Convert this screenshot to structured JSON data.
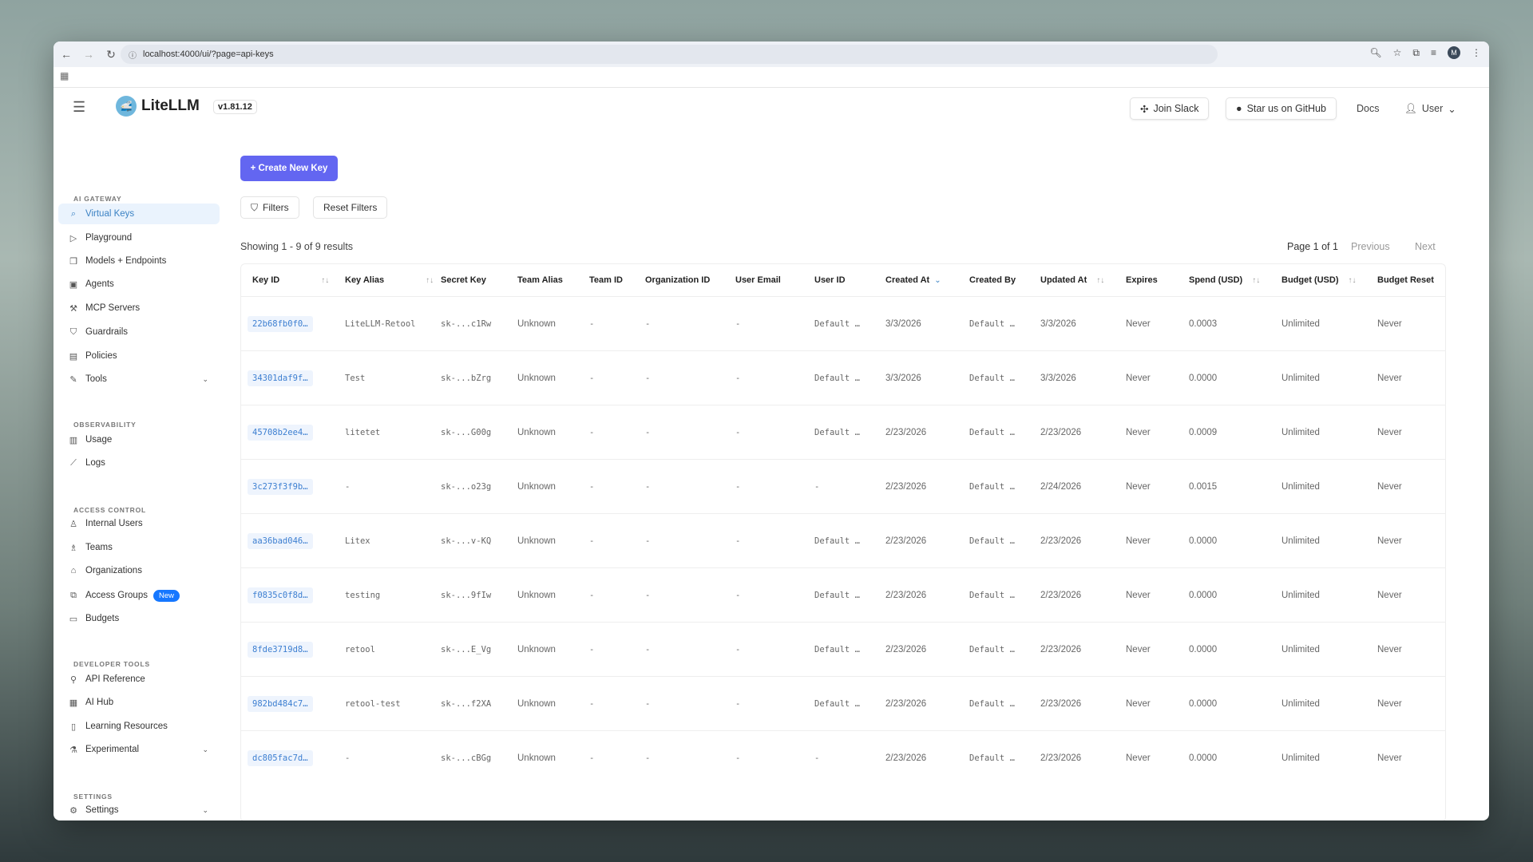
{
  "browser": {
    "url": "localhost:4000/ui/?page=api-keys",
    "avatar": "M"
  },
  "header": {
    "logo": "LiteLLM",
    "version": "v1.81.12",
    "join_slack": "Join Slack",
    "github": "Star us on GitHub",
    "docs": "Docs",
    "user": "User"
  },
  "sidebar": {
    "sections": [
      "AI GATEWAY",
      "OBSERVABILITY",
      "ACCESS CONTROL",
      "DEVELOPER TOOLS",
      "SETTINGS"
    ],
    "items": [
      {
        "label": "Virtual Keys",
        "icon": "search-icon"
      },
      {
        "label": "Playground",
        "icon": "play-icon"
      },
      {
        "label": "Models + Endpoints",
        "icon": "blocks-icon"
      },
      {
        "label": "Agents",
        "icon": "robot-icon"
      },
      {
        "label": "MCP Servers",
        "icon": "tool-icon"
      },
      {
        "label": "Guardrails",
        "icon": "shield-icon"
      },
      {
        "label": "Policies",
        "icon": "document-icon"
      },
      {
        "label": "Tools",
        "icon": "wrench-icon"
      },
      {
        "label": "Usage",
        "icon": "bar-chart-icon"
      },
      {
        "label": "Logs",
        "icon": "line-chart-icon"
      },
      {
        "label": "Internal Users",
        "icon": "user-icon"
      },
      {
        "label": "Teams",
        "icon": "team-icon"
      },
      {
        "label": "Organizations",
        "icon": "bank-icon"
      },
      {
        "label": "Access Groups",
        "icon": "group-icon",
        "badge": "New"
      },
      {
        "label": "Budgets",
        "icon": "wallet-icon"
      },
      {
        "label": "API Reference",
        "icon": "api-icon"
      },
      {
        "label": "AI Hub",
        "icon": "grid-icon"
      },
      {
        "label": "Learning Resources",
        "icon": "book-icon"
      },
      {
        "label": "Experimental",
        "icon": "flask-icon"
      },
      {
        "label": "Settings",
        "icon": "gear-icon"
      }
    ]
  },
  "main": {
    "create_label": "+ Create New Key",
    "filters_label": "Filters",
    "reset_label": "Reset Filters",
    "showing": "Showing 1 - 9 of 9 results",
    "page": "Page 1 of 1",
    "previous": "Previous",
    "next": "Next",
    "columns": [
      "Key ID",
      "Key Alias",
      "Secret Key",
      "Team Alias",
      "Team ID",
      "Organization ID",
      "User Email",
      "User ID",
      "Created At",
      "Created By",
      "Updated At",
      "Expires",
      "Spend (USD)",
      "Budget (USD)",
      "Budget Reset"
    ],
    "rows": [
      [
        "22b68fb0f0…",
        "LiteLLM-Retool",
        "sk-...c1Rw",
        "Unknown",
        "-",
        "-",
        "-",
        "Default …",
        "3/3/2026",
        "Default …",
        "3/3/2026",
        "Never",
        "0.0003",
        "Unlimited",
        "Never"
      ],
      [
        "34301daf9f…",
        "Test",
        "sk-...bZrg",
        "Unknown",
        "-",
        "-",
        "-",
        "Default …",
        "3/3/2026",
        "Default …",
        "3/3/2026",
        "Never",
        "0.0000",
        "Unlimited",
        "Never"
      ],
      [
        "45708b2ee4…",
        "litetet",
        "sk-...G00g",
        "Unknown",
        "-",
        "-",
        "-",
        "Default …",
        "2/23/2026",
        "Default …",
        "2/23/2026",
        "Never",
        "0.0009",
        "Unlimited",
        "Never"
      ],
      [
        "3c273f3f9b…",
        "-",
        "sk-...o23g",
        "Unknown",
        "-",
        "-",
        "-",
        "-",
        "2/23/2026",
        "Default …",
        "2/24/2026",
        "Never",
        "0.0015",
        "Unlimited",
        "Never"
      ],
      [
        "aa36bad046…",
        "Litex",
        "sk-...v-KQ",
        "Unknown",
        "-",
        "-",
        "-",
        "Default …",
        "2/23/2026",
        "Default …",
        "2/23/2026",
        "Never",
        "0.0000",
        "Unlimited",
        "Never"
      ],
      [
        "f0835c0f8d…",
        "testing",
        "sk-...9fIw",
        "Unknown",
        "-",
        "-",
        "-",
        "Default …",
        "2/23/2026",
        "Default …",
        "2/23/2026",
        "Never",
        "0.0000",
        "Unlimited",
        "Never"
      ],
      [
        "8fde3719d8…",
        "retool",
        "sk-...E_Vg",
        "Unknown",
        "-",
        "-",
        "-",
        "Default …",
        "2/23/2026",
        "Default …",
        "2/23/2026",
        "Never",
        "0.0000",
        "Unlimited",
        "Never"
      ],
      [
        "982bd484c7…",
        "retool-test",
        "sk-...f2XA",
        "Unknown",
        "-",
        "-",
        "-",
        "Default …",
        "2/23/2026",
        "Default …",
        "2/23/2026",
        "Never",
        "0.0000",
        "Unlimited",
        "Never"
      ],
      [
        "dc805fac7d…",
        "-",
        "sk-...cBGg",
        "Unknown",
        "-",
        "-",
        "-",
        "-",
        "2/23/2026",
        "Default …",
        "2/23/2026",
        "Never",
        "0.0000",
        "Unlimited",
        "Never"
      ]
    ]
  },
  "colors": {
    "accent": "#6366f1",
    "active": "#3b82c4",
    "badge": "#1677ff"
  }
}
